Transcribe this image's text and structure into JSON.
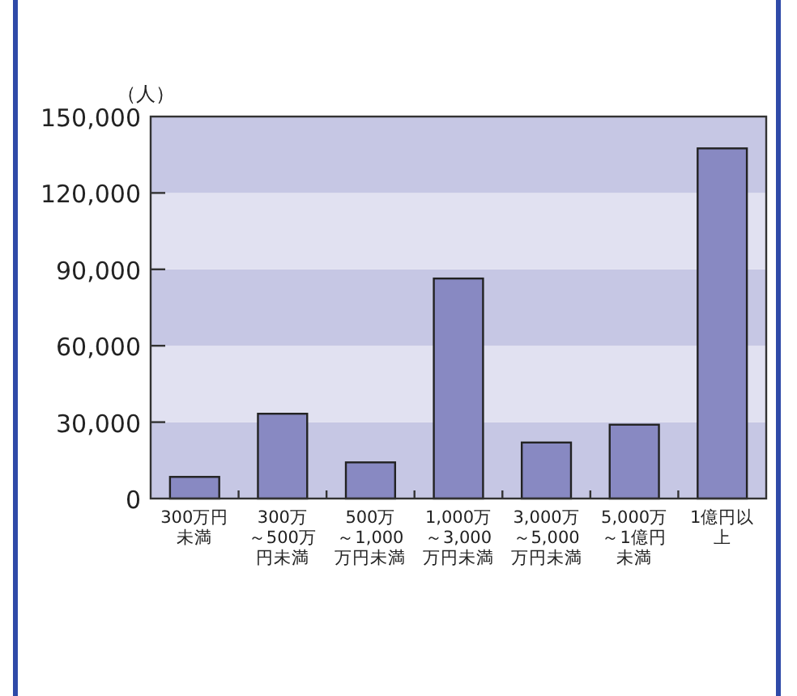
{
  "chart_data": {
    "type": "bar",
    "ylabel": "（人）",
    "categories": [
      "300万円未満",
      "300万～500万円未満",
      "500万～1,000万円未満",
      "1,000万～3,000万円未満",
      "3,000万～5,000万円未満",
      "5,000万～1億円未満",
      "1億円以上"
    ],
    "values": [
      8500,
      33300,
      14200,
      86400,
      22000,
      29000,
      137500
    ],
    "color": "#8889c2",
    "ylim": [
      0,
      150000
    ],
    "yticks": [
      {
        "value": 0,
        "label": "0"
      },
      {
        "value": 30000,
        "label": "30,000"
      },
      {
        "value": 60000,
        "label": "60,000"
      },
      {
        "value": 90000,
        "label": "90,000"
      },
      {
        "value": 120000,
        "label": "120,000"
      },
      {
        "value": 150000,
        "label": "150,000"
      }
    ],
    "bands": [
      {
        "axis": "y",
        "from": 0,
        "to": 30000,
        "label": null,
        "color": "#c6c7e4"
      },
      {
        "axis": "y",
        "from": 30000,
        "to": 60000,
        "label": null,
        "color": "#e1e1f1"
      },
      {
        "axis": "y",
        "from": 60000,
        "to": 90000,
        "label": null,
        "color": "#c6c7e4"
      },
      {
        "axis": "y",
        "from": 90000,
        "to": 120000,
        "label": null,
        "color": "#e1e1f1"
      },
      {
        "axis": "y",
        "from": 120000,
        "to": 150000,
        "label": null,
        "color": "#c6c7e4"
      }
    ],
    "grid": false
  }
}
